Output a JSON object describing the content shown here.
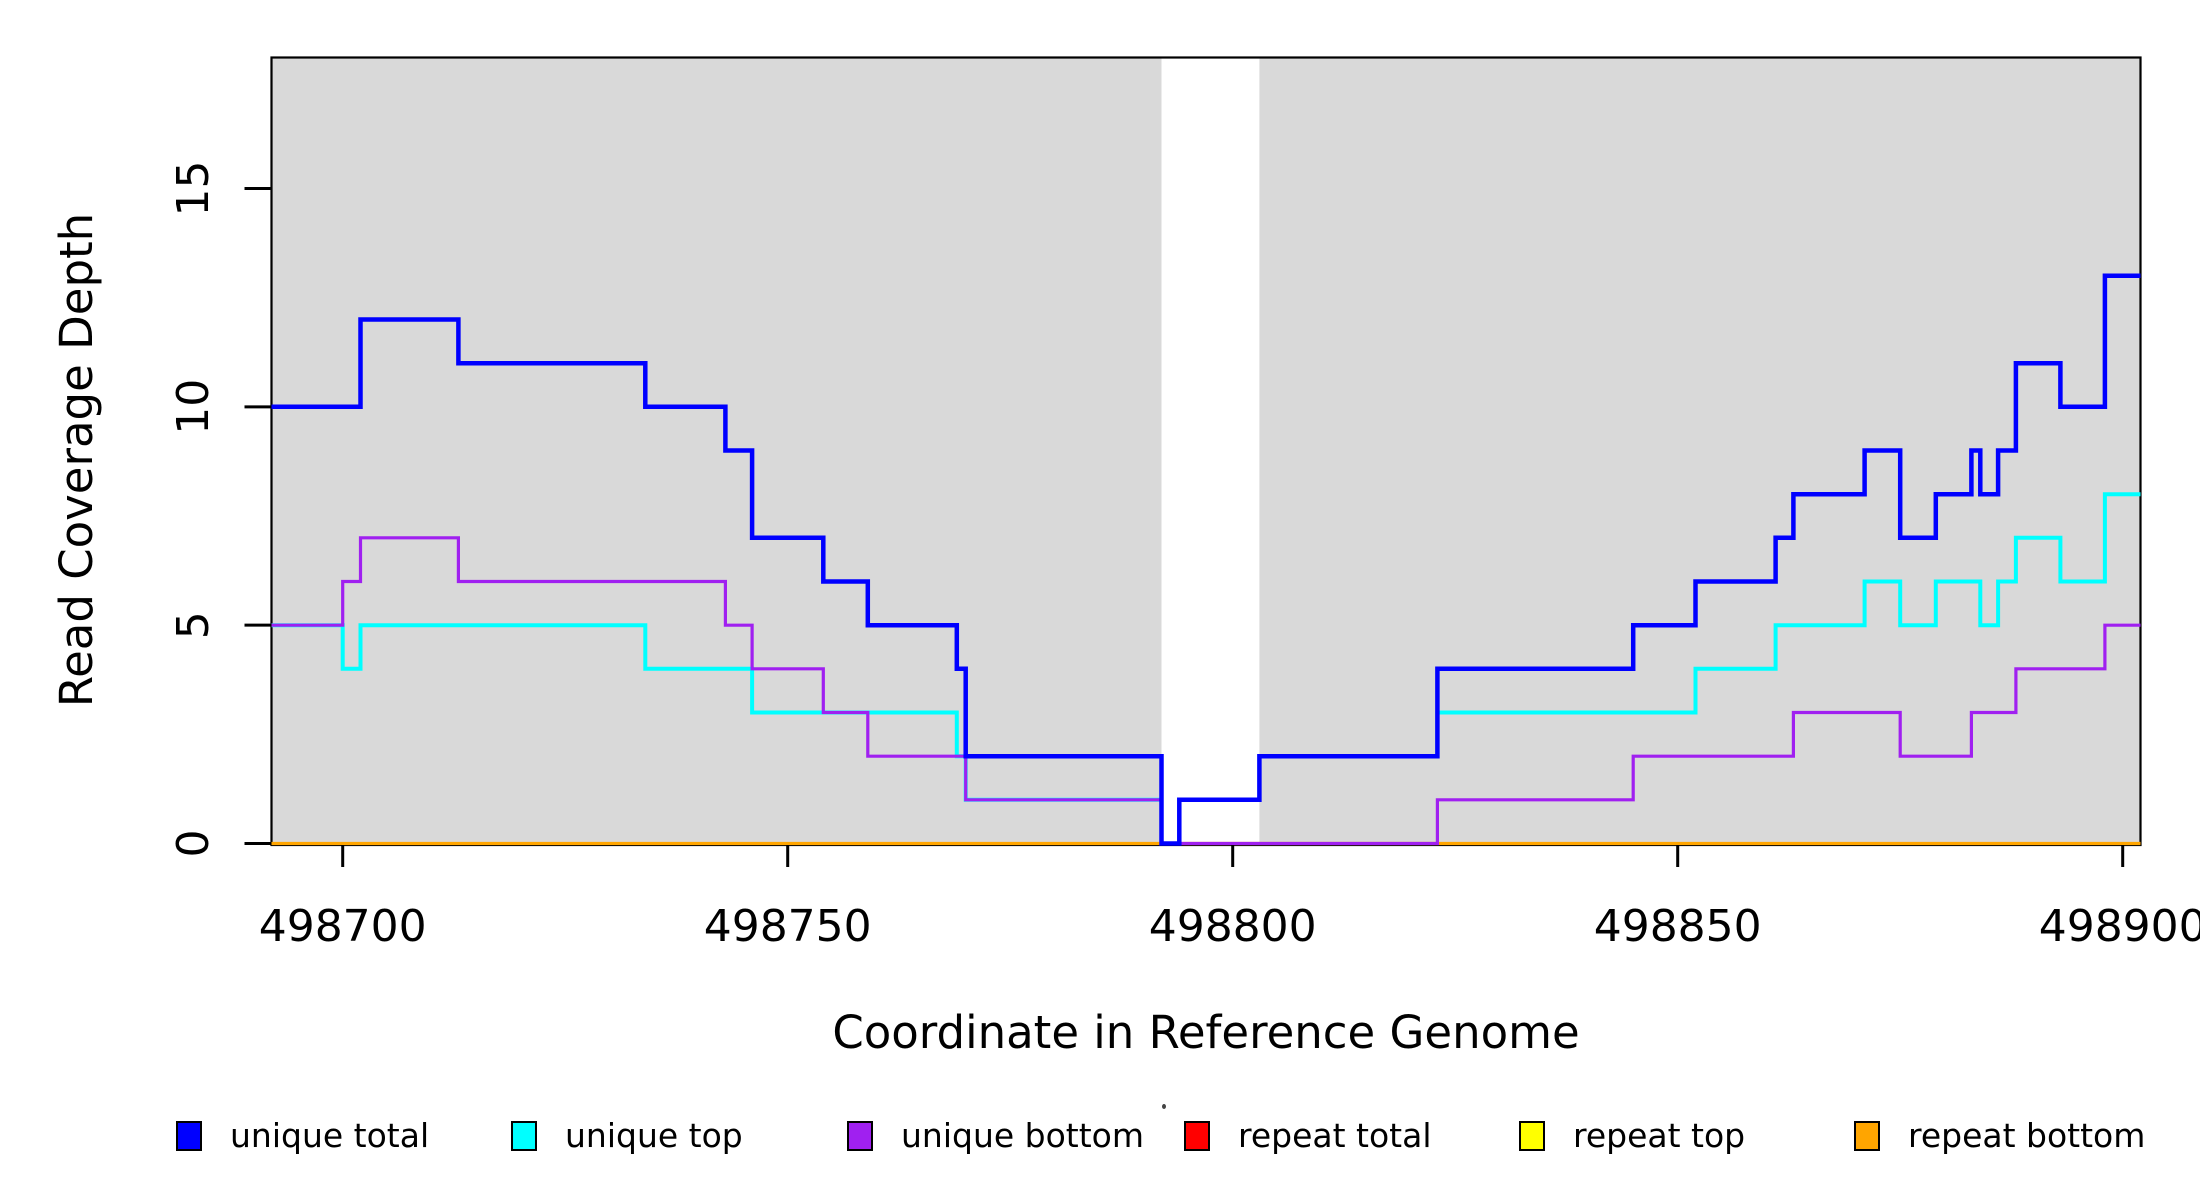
{
  "chart_data": {
    "type": "line",
    "subtype": "step-coverage-plot",
    "title": "",
    "xlabel": "Coordinate in Reference Genome",
    "ylabel": "Read Coverage Depth",
    "xlim": [
      498692,
      498902
    ],
    "ylim": [
      0,
      18
    ],
    "x_ticks": [
      498700,
      498750,
      498800,
      498850,
      498900
    ],
    "x_tick_labels": [
      "498700",
      "498750",
      "498800",
      "498850",
      "498900"
    ],
    "y_ticks": [
      0,
      5,
      10,
      15
    ],
    "y_tick_labels": [
      "0",
      "5",
      "10",
      "15"
    ],
    "grid": false,
    "legend_position": "bottom",
    "plot_background": "#D9D9D9",
    "background_regions": [
      {
        "name": "shaded-region-left",
        "x0": 498692,
        "x1": 498792,
        "color": "#D9D9D9"
      },
      {
        "name": "unshaded-gap",
        "x0": 498792,
        "x1": 498803,
        "color": "#FFFFFF"
      },
      {
        "name": "shaded-region-right",
        "x0": 498803,
        "x1": 498902,
        "color": "#D9D9D9"
      }
    ],
    "series": [
      {
        "name": "unique total",
        "color": "#0000FF",
        "steps": [
          [
            498692,
            10
          ],
          [
            498702,
            12
          ],
          [
            498713,
            11
          ],
          [
            498734,
            10
          ],
          [
            498743,
            9
          ],
          [
            498746,
            7
          ],
          [
            498754,
            6
          ],
          [
            498759,
            5
          ],
          [
            498769,
            4
          ],
          [
            498770,
            2
          ],
          [
            498792,
            0
          ],
          [
            498794,
            1
          ],
          [
            498803,
            2
          ],
          [
            498823,
            4
          ],
          [
            498845,
            5
          ],
          [
            498852,
            6
          ],
          [
            498861,
            7
          ],
          [
            498863,
            8
          ],
          [
            498871,
            9
          ],
          [
            498875,
            7
          ],
          [
            498879,
            8
          ],
          [
            498883,
            9
          ],
          [
            498884,
            8
          ],
          [
            498886,
            9
          ],
          [
            498888,
            11
          ],
          [
            498893,
            10
          ],
          [
            498898,
            13
          ]
        ]
      },
      {
        "name": "unique top",
        "color": "#00FFFF",
        "steps": [
          [
            498692,
            5
          ],
          [
            498700,
            4
          ],
          [
            498702,
            5
          ],
          [
            498734,
            4
          ],
          [
            498746,
            3
          ],
          [
            498769,
            2
          ],
          [
            498770,
            1
          ],
          [
            498792,
            0
          ],
          [
            498794,
            1
          ],
          [
            498803,
            2
          ],
          [
            498823,
            3
          ],
          [
            498852,
            4
          ],
          [
            498861,
            5
          ],
          [
            498871,
            6
          ],
          [
            498875,
            5
          ],
          [
            498879,
            6
          ],
          [
            498884,
            5
          ],
          [
            498886,
            6
          ],
          [
            498888,
            7
          ],
          [
            498893,
            6
          ],
          [
            498898,
            8
          ]
        ]
      },
      {
        "name": "unique bottom",
        "color": "#A020F0",
        "steps": [
          [
            498692,
            5
          ],
          [
            498700,
            6
          ],
          [
            498702,
            7
          ],
          [
            498713,
            6
          ],
          [
            498743,
            5
          ],
          [
            498746,
            4
          ],
          [
            498754,
            3
          ],
          [
            498759,
            2
          ],
          [
            498770,
            1
          ],
          [
            498792,
            0
          ],
          [
            498823,
            1
          ],
          [
            498845,
            2
          ],
          [
            498863,
            3
          ],
          [
            498875,
            2
          ],
          [
            498883,
            3
          ],
          [
            498888,
            4
          ],
          [
            498898,
            5
          ]
        ]
      },
      {
        "name": "repeat total",
        "color": "#FF0000",
        "steps": [
          [
            498692,
            0
          ]
        ]
      },
      {
        "name": "repeat top",
        "color": "#FFFF00",
        "steps": [
          [
            498692,
            0
          ]
        ]
      },
      {
        "name": "repeat bottom",
        "color": "#FFA500",
        "steps": [
          [
            498692,
            0
          ]
        ]
      }
    ]
  }
}
